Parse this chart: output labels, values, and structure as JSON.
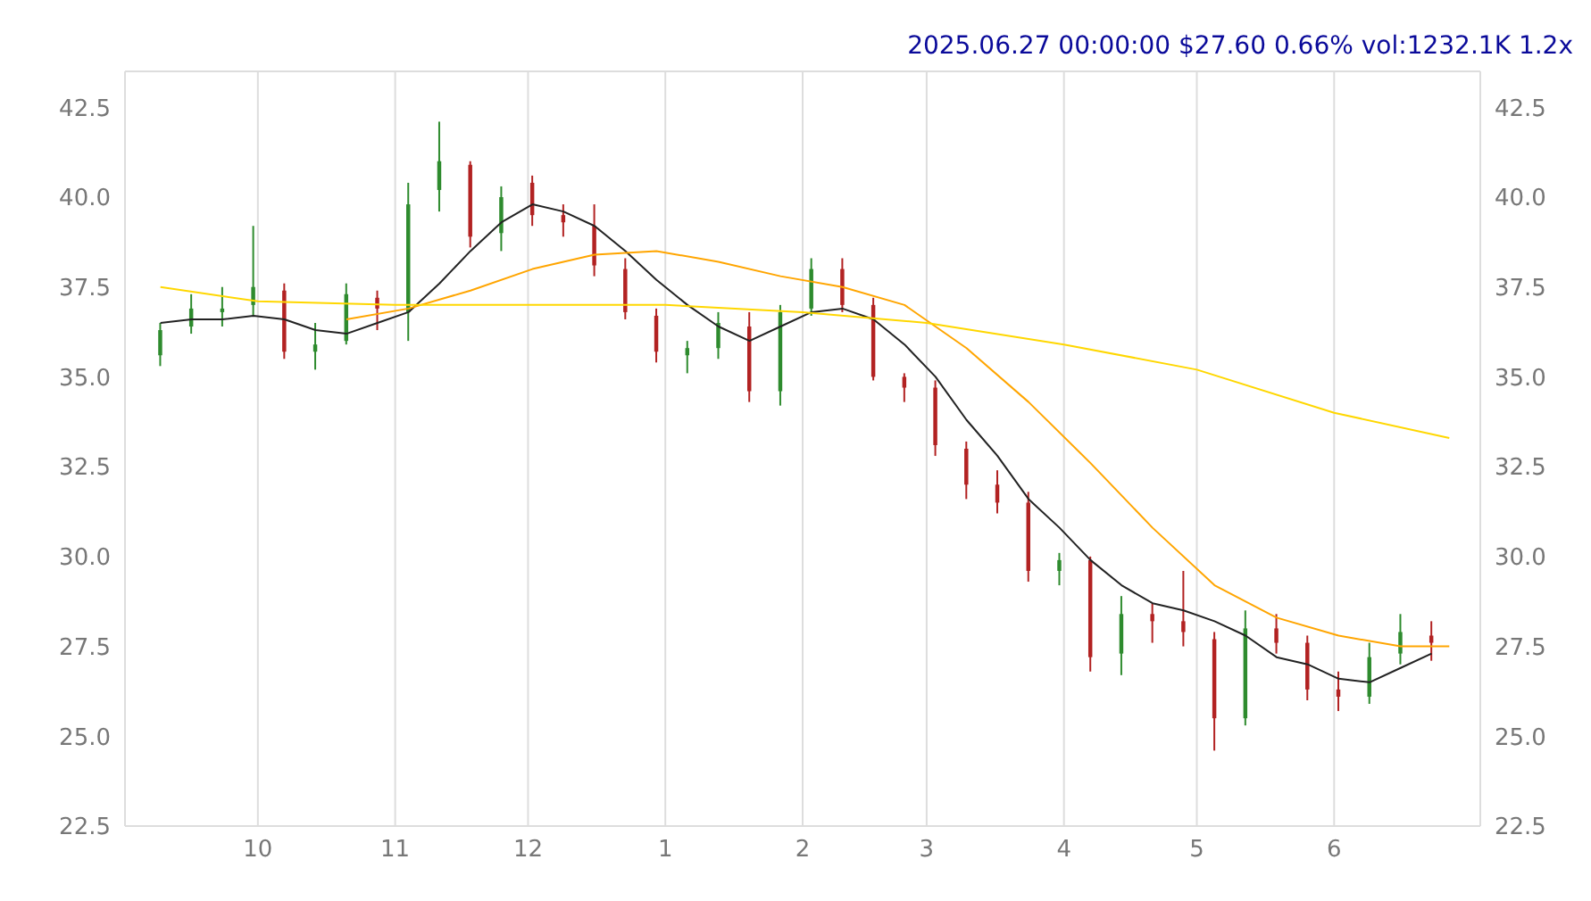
{
  "chart_data": {
    "type": "candlestick",
    "title": "2025.06.27 00:00:00 $27.60 0.66% vol:1232.1K 1.2x",
    "x": [
      "2024-09-09",
      "2024-09-16",
      "2024-09-23",
      "2024-09-30",
      "2024-10-07",
      "2024-10-14",
      "2024-10-21",
      "2024-10-28",
      "2024-11-04",
      "2024-11-11",
      "2024-11-18",
      "2024-11-25",
      "2024-12-02",
      "2024-12-09",
      "2024-12-16",
      "2024-12-23",
      "2024-12-30",
      "2025-01-06",
      "2025-01-13",
      "2025-01-20",
      "2025-01-27",
      "2025-02-03",
      "2025-02-10",
      "2025-02-17",
      "2025-02-24",
      "2025-03-03",
      "2025-03-10",
      "2025-03-17",
      "2025-03-24",
      "2025-03-31",
      "2025-04-07",
      "2025-04-14",
      "2025-04-21",
      "2025-04-28",
      "2025-05-05",
      "2025-05-12",
      "2025-05-19",
      "2025-05-26",
      "2025-06-02",
      "2025-06-09",
      "2025-06-16",
      "2025-06-23"
    ],
    "ohlc": [
      [
        35.6,
        36.5,
        35.3,
        36.3
      ],
      [
        36.4,
        37.3,
        36.2,
        36.9
      ],
      [
        36.8,
        37.5,
        36.4,
        36.9
      ],
      [
        37.0,
        39.2,
        36.7,
        37.5
      ],
      [
        37.4,
        37.6,
        35.5,
        35.7
      ],
      [
        35.7,
        36.5,
        35.2,
        35.9
      ],
      [
        36.0,
        37.6,
        35.9,
        37.3
      ],
      [
        37.2,
        37.4,
        36.3,
        36.9
      ],
      [
        36.8,
        40.4,
        36.0,
        39.8
      ],
      [
        40.2,
        42.1,
        39.6,
        41.0
      ],
      [
        40.9,
        41.0,
        38.6,
        38.9
      ],
      [
        39.0,
        40.3,
        38.5,
        40.0
      ],
      [
        40.4,
        40.6,
        39.2,
        39.5
      ],
      [
        39.5,
        39.8,
        38.9,
        39.3
      ],
      [
        39.2,
        39.8,
        37.8,
        38.1
      ],
      [
        38.0,
        38.3,
        36.6,
        36.8
      ],
      [
        36.7,
        36.9,
        35.4,
        35.7
      ],
      [
        35.6,
        36.0,
        35.1,
        35.8
      ],
      [
        35.8,
        36.8,
        35.5,
        36.5
      ],
      [
        36.4,
        36.8,
        34.3,
        34.6
      ],
      [
        34.6,
        37.0,
        34.2,
        36.8
      ],
      [
        36.9,
        38.3,
        36.7,
        38.0
      ],
      [
        38.0,
        38.3,
        36.8,
        37.0
      ],
      [
        37.0,
        37.2,
        34.9,
        35.0
      ],
      [
        35.0,
        35.1,
        34.3,
        34.7
      ],
      [
        34.7,
        34.9,
        32.8,
        33.1
      ],
      [
        33.0,
        33.2,
        31.6,
        32.0
      ],
      [
        32.0,
        32.4,
        31.2,
        31.5
      ],
      [
        31.5,
        31.8,
        29.3,
        29.6
      ],
      [
        29.6,
        30.1,
        29.2,
        29.9
      ],
      [
        29.9,
        30.0,
        26.8,
        27.2
      ],
      [
        27.3,
        28.9,
        26.7,
        28.4
      ],
      [
        28.4,
        28.7,
        27.6,
        28.2
      ],
      [
        28.2,
        29.6,
        27.5,
        27.9
      ],
      [
        27.7,
        27.9,
        24.6,
        25.5
      ],
      [
        25.5,
        28.5,
        25.3,
        28.0
      ],
      [
        28.0,
        28.4,
        27.3,
        27.6
      ],
      [
        27.6,
        27.8,
        26.0,
        26.3
      ],
      [
        26.3,
        26.8,
        25.7,
        26.1
      ],
      [
        26.1,
        27.6,
        25.9,
        27.2
      ],
      [
        27.3,
        28.4,
        27.0,
        27.9
      ],
      [
        27.8,
        28.2,
        27.1,
        27.6
      ]
    ],
    "colors": [
      "#2e8b2e",
      "#2e8b2e",
      "#2e8b2e",
      "#2e8b2e",
      "#b22222",
      "#2e8b2e",
      "#2e8b2e",
      "#b22222",
      "#2e8b2e",
      "#2e8b2e",
      "#b22222",
      "#2e8b2e",
      "#b22222",
      "#b22222",
      "#b22222",
      "#b22222",
      "#b22222",
      "#2e8b2e",
      "#2e8b2e",
      "#b22222",
      "#2e8b2e",
      "#2e8b2e",
      "#b22222",
      "#b22222",
      "#b22222",
      "#b22222",
      "#b22222",
      "#b22222",
      "#b22222",
      "#2e8b2e",
      "#b22222",
      "#2e8b2e",
      "#b22222",
      "#b22222",
      "#b22222",
      "#2e8b2e",
      "#b22222",
      "#b22222",
      "#b22222",
      "#2e8b2e",
      "#2e8b2e",
      "#b22222"
    ],
    "series": [
      {
        "type": "line",
        "color": "#222222",
        "x": [
          "2024-09-09",
          "2024-09-16",
          "2024-09-23",
          "2024-09-30",
          "2024-10-07",
          "2024-10-14",
          "2024-10-21",
          "2024-10-28",
          "2024-11-04",
          "2024-11-11",
          "2024-11-18",
          "2024-11-25",
          "2024-12-02",
          "2024-12-09",
          "2024-12-16",
          "2024-12-23",
          "2024-12-30",
          "2025-01-06",
          "2025-01-13",
          "2025-01-20",
          "2025-01-27",
          "2025-02-03",
          "2025-02-10",
          "2025-02-17",
          "2025-02-24",
          "2025-03-03",
          "2025-03-10",
          "2025-03-17",
          "2025-03-24",
          "2025-03-31",
          "2025-04-07",
          "2025-04-14",
          "2025-04-21",
          "2025-04-28",
          "2025-05-05",
          "2025-05-12",
          "2025-05-19",
          "2025-05-26",
          "2025-06-02",
          "2025-06-09",
          "2025-06-16",
          "2025-06-23"
        ],
        "values": [
          36.5,
          36.6,
          36.6,
          36.7,
          36.6,
          36.3,
          36.2,
          36.5,
          36.8,
          37.6,
          38.5,
          39.3,
          39.8,
          39.6,
          39.2,
          38.5,
          37.7,
          37.0,
          36.4,
          36.0,
          36.4,
          36.8,
          36.9,
          36.6,
          35.9,
          35.0,
          33.8,
          32.8,
          31.6,
          30.8,
          29.9,
          29.2,
          28.7,
          28.5,
          28.2,
          27.8,
          27.2,
          27.0,
          26.6,
          26.5,
          26.9,
          27.3
        ]
      },
      {
        "type": "line",
        "color": "#ffa500",
        "x": [
          "2024-10-21",
          "2024-11-04",
          "2024-11-18",
          "2024-12-02",
          "2024-12-16",
          "2024-12-30",
          "2025-01-13",
          "2025-01-27",
          "2025-02-10",
          "2025-02-24",
          "2025-03-10",
          "2025-03-24",
          "2025-04-07",
          "2025-04-21",
          "2025-05-05",
          "2025-05-19",
          "2025-06-02",
          "2025-06-16",
          "2025-06-27"
        ],
        "values": [
          36.6,
          36.9,
          37.4,
          38.0,
          38.4,
          38.5,
          38.2,
          37.8,
          37.5,
          37.0,
          35.8,
          34.3,
          32.6,
          30.8,
          29.2,
          28.3,
          27.8,
          27.5,
          27.5
        ]
      },
      {
        "type": "line",
        "color": "#ffd700",
        "x": [
          "2024-09-09",
          "2024-10-01",
          "2024-11-01",
          "2024-12-01",
          "2025-01-01",
          "2025-02-01",
          "2025-03-01",
          "2025-04-01",
          "2025-05-01",
          "2025-06-01",
          "2025-06-27"
        ],
        "values": [
          37.5,
          37.1,
          37.0,
          37.0,
          37.0,
          36.8,
          36.5,
          35.9,
          35.2,
          34.0,
          33.3
        ]
      }
    ],
    "xlim": [
      "2024-09-01",
      "2025-07-04"
    ],
    "xticks": [
      {
        "value": "2024-10-01",
        "label": "10"
      },
      {
        "value": "2024-11-01",
        "label": "11"
      },
      {
        "value": "2024-12-01",
        "label": "12"
      },
      {
        "value": "2025-01-01",
        "label": "1"
      },
      {
        "value": "2025-02-01",
        "label": "2"
      },
      {
        "value": "2025-03-01",
        "label": "3"
      },
      {
        "value": "2025-04-01",
        "label": "4"
      },
      {
        "value": "2025-05-01",
        "label": "5"
      },
      {
        "value": "2025-06-01",
        "label": "6"
      }
    ],
    "ylim": [
      22.5,
      43.5
    ],
    "yticks": [
      {
        "value": 22.5,
        "label": "22.5"
      },
      {
        "value": 25,
        "label": "25.0"
      },
      {
        "value": 27.5,
        "label": "27.5"
      },
      {
        "value": 30,
        "label": "30.0"
      },
      {
        "value": 32.5,
        "label": "32.5"
      },
      {
        "value": 35,
        "label": "35.0"
      },
      {
        "value": 37.5,
        "label": "37.5"
      },
      {
        "value": 40,
        "label": "40.0"
      },
      {
        "value": 42.5,
        "label": "42.5"
      }
    ],
    "y2lim": [
      22.5,
      43.5
    ],
    "y2ticks": [
      {
        "value": 22.5,
        "label": "22.5"
      },
      {
        "value": 25,
        "label": "25.0"
      },
      {
        "value": 27.5,
        "label": "27.5"
      },
      {
        "value": 30,
        "label": "30.0"
      },
      {
        "value": 32.5,
        "label": "32.5"
      },
      {
        "value": 35,
        "label": "35.0"
      },
      {
        "value": 37.5,
        "label": "37.5"
      },
      {
        "value": 40,
        "label": "40.0"
      },
      {
        "value": 42.5,
        "label": "42.5"
      }
    ],
    "grid": true
  }
}
